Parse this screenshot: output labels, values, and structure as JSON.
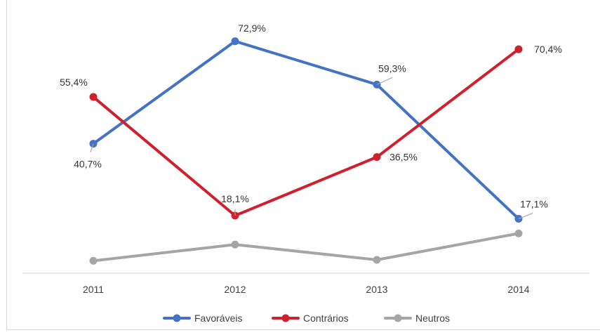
{
  "chart_data": {
    "type": "line",
    "categories": [
      "2011",
      "2012",
      "2013",
      "2014"
    ],
    "series": [
      {
        "name": "Favoráveis",
        "color": "#4472c4",
        "values": [
          40.7,
          72.9,
          59.3,
          17.1
        ],
        "data_labels": [
          "40,7%",
          "72,9%",
          "59,3%",
          "17,1%"
        ]
      },
      {
        "name": "Contrários",
        "color": "#d0202d",
        "values": [
          55.4,
          18.1,
          36.5,
          70.4
        ],
        "data_labels": [
          "55,4%",
          "18,1%",
          "36,5%",
          "70,4%"
        ]
      },
      {
        "name": "Neutros",
        "color": "#a5a5a5",
        "values": [
          3.9,
          9.0,
          4.2,
          12.5
        ],
        "data_labels": []
      }
    ],
    "ylim": [
      0,
      80
    ],
    "grid": false,
    "legend_position": "bottom"
  }
}
